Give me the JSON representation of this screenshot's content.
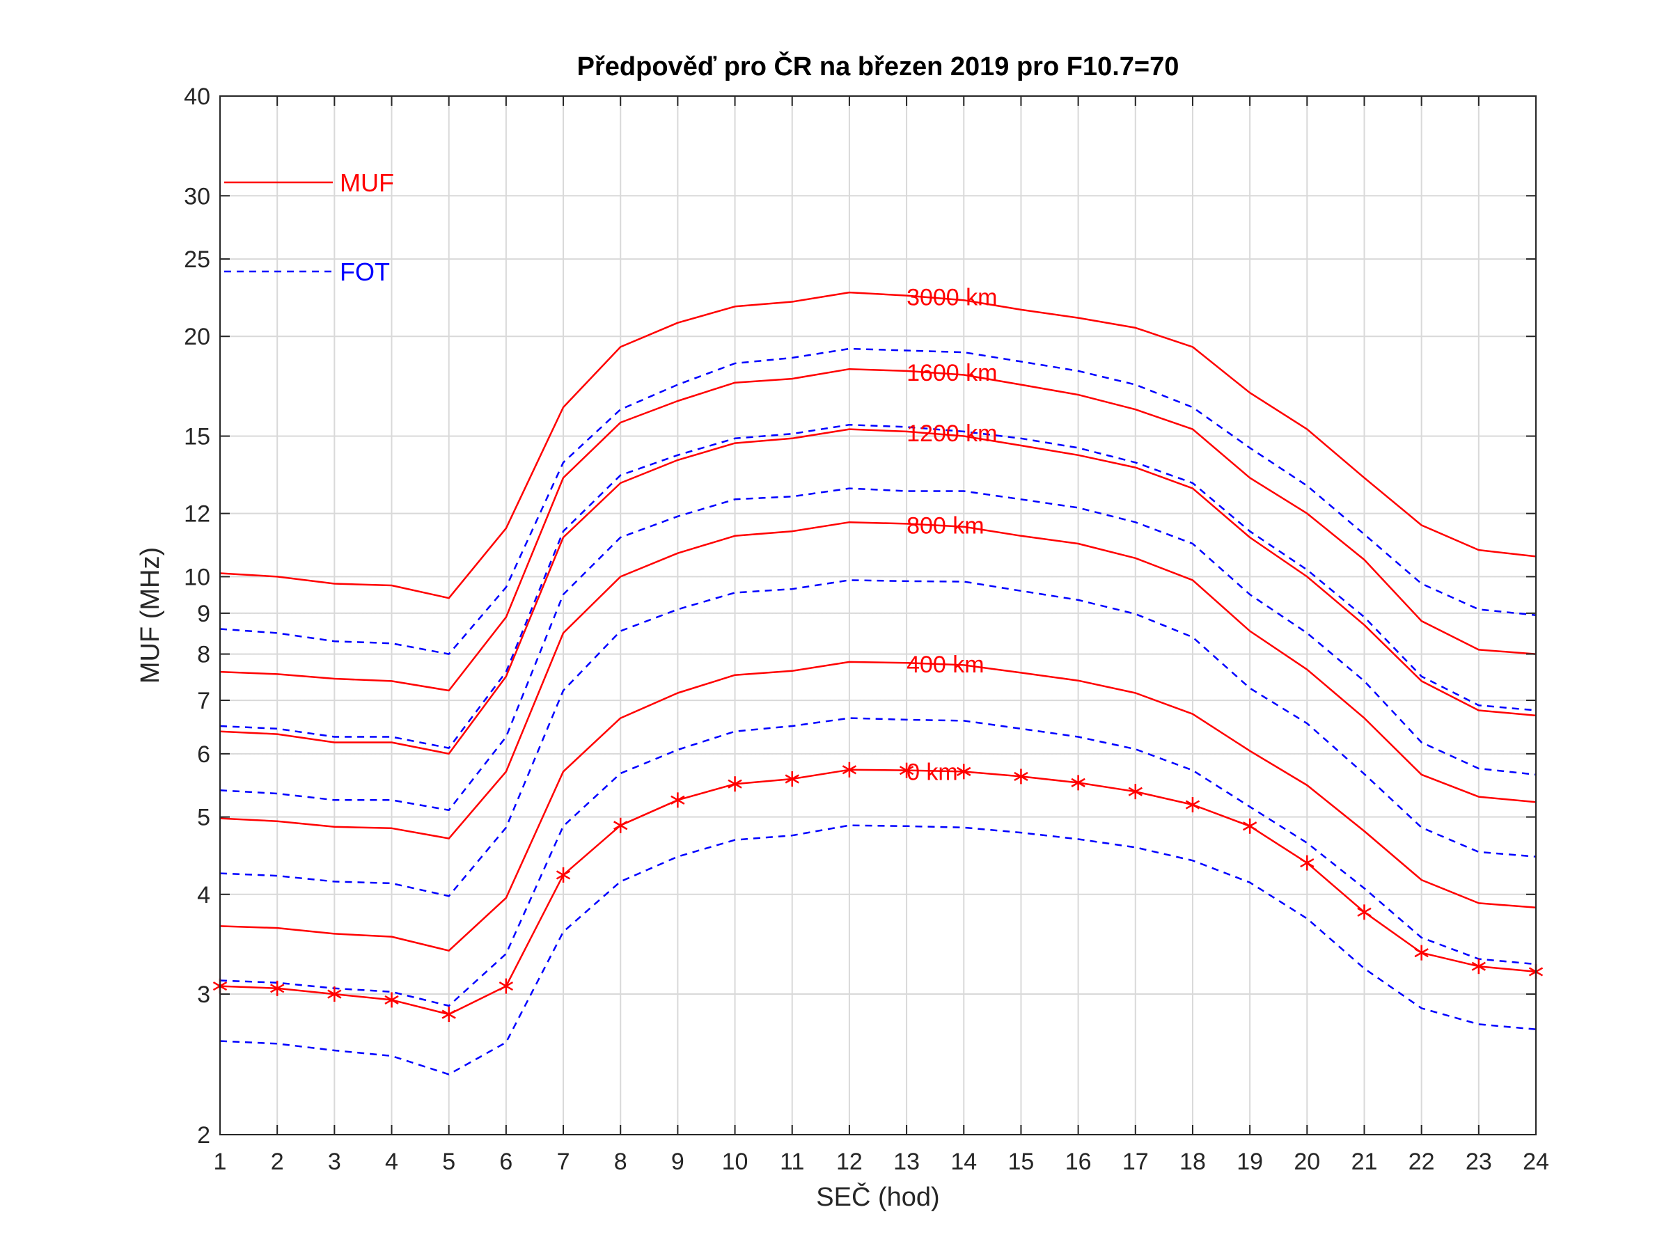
{
  "chart_data": {
    "type": "line",
    "title": "Předpověď pro ČR na březen 2019 pro F10.7=70",
    "xlabel": "SEČ (hod)",
    "ylabel": "MUF (MHz)",
    "xlim": [
      1,
      24
    ],
    "ylim": [
      2,
      40
    ],
    "y_scale": "log",
    "grid": true,
    "minor_grid": true,
    "x_ticks": [
      "1",
      "2",
      "3",
      "4",
      "5",
      "6",
      "7",
      "8",
      "9",
      "10",
      "11",
      "12",
      "13",
      "14",
      "15",
      "16",
      "17",
      "18",
      "19",
      "20",
      "21",
      "22",
      "23",
      "24"
    ],
    "y_ticks": [
      2,
      3,
      4,
      5,
      6,
      7,
      8,
      9,
      10,
      12,
      15,
      20,
      25,
      30,
      40
    ],
    "y_tick_labels": [
      "2",
      "3",
      "4",
      "5",
      "6",
      "7",
      "8",
      "9",
      "10",
      "12",
      "15",
      "20",
      "25",
      "30",
      "40"
    ],
    "legend": {
      "position": "top-left",
      "entries": [
        {
          "label": "MUF",
          "color": "#ff0000",
          "style": "solid"
        },
        {
          "label": "FOT",
          "color": "#0000ff",
          "style": "dashed"
        }
      ]
    },
    "x": [
      1,
      2,
      3,
      4,
      5,
      6,
      7,
      8,
      9,
      10,
      11,
      12,
      13,
      14,
      15,
      16,
      17,
      18,
      19,
      20,
      21,
      22,
      23,
      24
    ],
    "series": [
      {
        "group": "3000 km",
        "kind": "MUF",
        "color": "#ff0000",
        "dash": "solid",
        "values": [
          10.1,
          10.0,
          9.8,
          9.75,
          9.4,
          11.5,
          16.3,
          19.4,
          20.8,
          21.8,
          22.1,
          22.7,
          22.5,
          22.2,
          21.6,
          21.1,
          20.5,
          19.4,
          17.0,
          15.3,
          13.3,
          11.6,
          10.8,
          10.6
        ]
      },
      {
        "group": "3000 km",
        "kind": "FOT",
        "color": "#0000ff",
        "dash": "dashed",
        "values": [
          8.6,
          8.5,
          8.3,
          8.25,
          8.0,
          9.7,
          13.9,
          16.2,
          17.4,
          18.5,
          18.8,
          19.3,
          19.2,
          19.1,
          18.6,
          18.1,
          17.4,
          16.3,
          14.5,
          13.0,
          11.3,
          9.8,
          9.1,
          8.95
        ]
      },
      {
        "group": "1600 km",
        "kind": "MUF",
        "color": "#ff0000",
        "dash": "solid",
        "values": [
          7.6,
          7.55,
          7.45,
          7.4,
          7.2,
          8.9,
          13.3,
          15.6,
          16.6,
          17.5,
          17.7,
          18.2,
          18.1,
          17.9,
          17.4,
          16.9,
          16.2,
          15.3,
          13.3,
          12.0,
          10.5,
          8.8,
          8.1,
          8.0
        ]
      },
      {
        "group": "1600 km",
        "kind": "FOT",
        "color": "#0000ff",
        "dash": "dashed",
        "values": [
          6.5,
          6.45,
          6.3,
          6.3,
          6.1,
          7.6,
          11.4,
          13.4,
          14.2,
          14.9,
          15.1,
          15.5,
          15.4,
          15.2,
          14.9,
          14.5,
          13.9,
          13.1,
          11.4,
          10.2,
          8.9,
          7.5,
          6.9,
          6.8
        ]
      },
      {
        "group": "1200 km",
        "kind": "MUF",
        "color": "#ff0000",
        "dash": "solid",
        "values": [
          6.4,
          6.35,
          6.2,
          6.2,
          6.0,
          7.5,
          11.2,
          13.1,
          14.0,
          14.7,
          14.9,
          15.3,
          15.2,
          15.0,
          14.6,
          14.2,
          13.7,
          12.9,
          11.2,
          10.0,
          8.7,
          7.4,
          6.8,
          6.7
        ]
      },
      {
        "group": "1200 km",
        "kind": "FOT",
        "color": "#0000ff",
        "dash": "dashed",
        "values": [
          5.4,
          5.35,
          5.25,
          5.25,
          5.1,
          6.3,
          9.5,
          11.2,
          11.9,
          12.5,
          12.6,
          12.9,
          12.8,
          12.8,
          12.5,
          12.2,
          11.7,
          11.0,
          9.5,
          8.5,
          7.4,
          6.2,
          5.75,
          5.65
        ]
      },
      {
        "group": "800 km",
        "kind": "MUF",
        "color": "#ff0000",
        "dash": "solid",
        "values": [
          4.98,
          4.94,
          4.86,
          4.84,
          4.7,
          5.7,
          8.5,
          10.0,
          10.7,
          11.25,
          11.4,
          11.7,
          11.65,
          11.55,
          11.25,
          11.0,
          10.55,
          9.9,
          8.55,
          7.65,
          6.65,
          5.65,
          5.3,
          5.22
        ]
      },
      {
        "group": "800 km",
        "kind": "FOT",
        "color": "#0000ff",
        "dash": "dashed",
        "values": [
          4.25,
          4.22,
          4.15,
          4.13,
          3.98,
          4.85,
          7.2,
          8.55,
          9.1,
          9.55,
          9.65,
          9.9,
          9.87,
          9.86,
          9.6,
          9.35,
          8.98,
          8.4,
          7.25,
          6.55,
          5.66,
          4.85,
          4.52,
          4.46
        ]
      },
      {
        "group": "400 km",
        "kind": "MUF",
        "color": "#ff0000",
        "dash": "solid",
        "values": [
          3.65,
          3.63,
          3.57,
          3.54,
          3.4,
          3.96,
          5.7,
          6.65,
          7.15,
          7.53,
          7.62,
          7.82,
          7.8,
          7.75,
          7.58,
          7.41,
          7.15,
          6.73,
          6.05,
          5.48,
          4.8,
          4.17,
          3.9,
          3.85
        ]
      },
      {
        "group": "400 km",
        "kind": "FOT",
        "color": "#0000ff",
        "dash": "dashed",
        "values": [
          3.12,
          3.1,
          3.05,
          3.02,
          2.9,
          3.37,
          4.87,
          5.67,
          6.07,
          6.4,
          6.5,
          6.65,
          6.62,
          6.6,
          6.45,
          6.3,
          6.08,
          5.72,
          5.15,
          4.64,
          4.07,
          3.53,
          3.32,
          3.27
        ]
      },
      {
        "group": "0 km",
        "kind": "MUF",
        "color": "#ff0000",
        "dash": "solid",
        "marker": "asterisk",
        "values": [
          3.07,
          3.05,
          3.0,
          2.95,
          2.83,
          3.07,
          4.23,
          4.88,
          5.25,
          5.5,
          5.58,
          5.73,
          5.72,
          5.7,
          5.62,
          5.52,
          5.38,
          5.18,
          4.87,
          4.38,
          3.8,
          3.38,
          3.25,
          3.2
        ]
      },
      {
        "group": "0 km",
        "kind": "FOT",
        "color": "#0000ff",
        "dash": "dashed",
        "values": [
          2.62,
          2.6,
          2.55,
          2.51,
          2.38,
          2.61,
          3.59,
          4.15,
          4.46,
          4.68,
          4.74,
          4.88,
          4.87,
          4.85,
          4.78,
          4.69,
          4.58,
          4.41,
          4.14,
          3.73,
          3.23,
          2.88,
          2.75,
          2.71
        ]
      }
    ],
    "annotations": [
      {
        "text": "3000 km",
        "x": 13,
        "y": 22.5,
        "color": "#ff0000"
      },
      {
        "text": "1600 km",
        "x": 13,
        "y": 18.1,
        "color": "#ff0000"
      },
      {
        "text": "1200 km",
        "x": 13,
        "y": 15.2,
        "color": "#ff0000"
      },
      {
        "text": "800 km",
        "x": 13,
        "y": 11.65,
        "color": "#ff0000"
      },
      {
        "text": "400 km",
        "x": 13,
        "y": 7.8,
        "color": "#ff0000"
      },
      {
        "text": "0 km",
        "x": 13,
        "y": 5.72,
        "color": "#ff0000"
      }
    ]
  }
}
